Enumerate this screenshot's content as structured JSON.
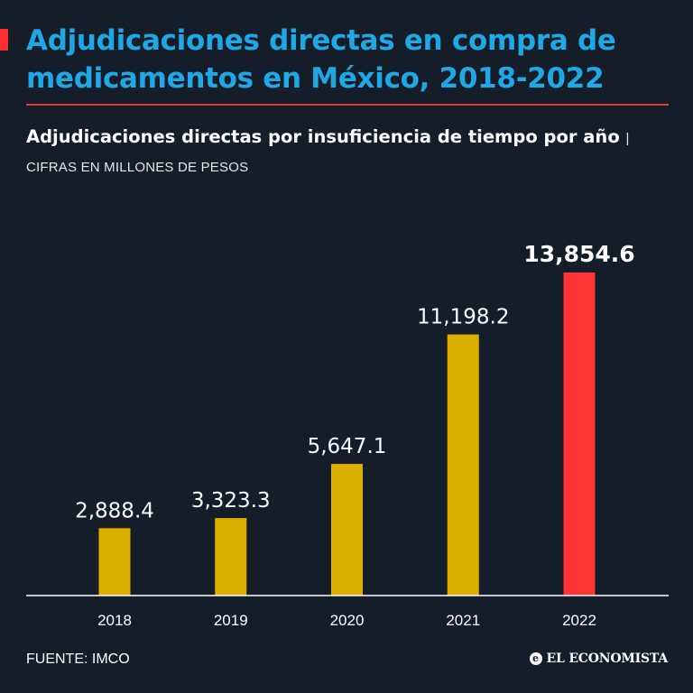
{
  "header": {
    "title": "Adjudicaciones directas en compra de medicamentos en México, 2018-2022"
  },
  "subtitle": {
    "main": "Adjudicaciones directas por insuficiencia de tiempo por año",
    "separator": "|",
    "units": "CIFRAS EN MILLONES DE PESOS"
  },
  "chart_data": {
    "type": "bar",
    "title": "Adjudicaciones directas por insuficiencia de tiempo por año",
    "xlabel": "",
    "ylabel": "",
    "units": "CIFRAS EN MILLONES DE PESOS",
    "categories": [
      "2018",
      "2019",
      "2020",
      "2021",
      "2022"
    ],
    "values": [
      2888.4,
      3323.3,
      5647.1,
      11198.2,
      13854.6
    ],
    "value_labels": [
      "2,888.4",
      "3,323.3",
      "5,647.1",
      "11,198.2",
      "13,854.6"
    ],
    "highlight_index": 4,
    "colors": {
      "default": "#ddb000",
      "highlight": "#ff3535"
    },
    "ylim": [
      0,
      13854.6
    ],
    "grid": false
  },
  "footer": {
    "source": "FUENTE: IMCO",
    "brand": "EL ECONOMISTA",
    "brand_mark": "e"
  },
  "colors": {
    "background": "#141d28",
    "title": "#20a8e6",
    "accent": "#ff2f2f",
    "rule": "#e03a3e"
  }
}
